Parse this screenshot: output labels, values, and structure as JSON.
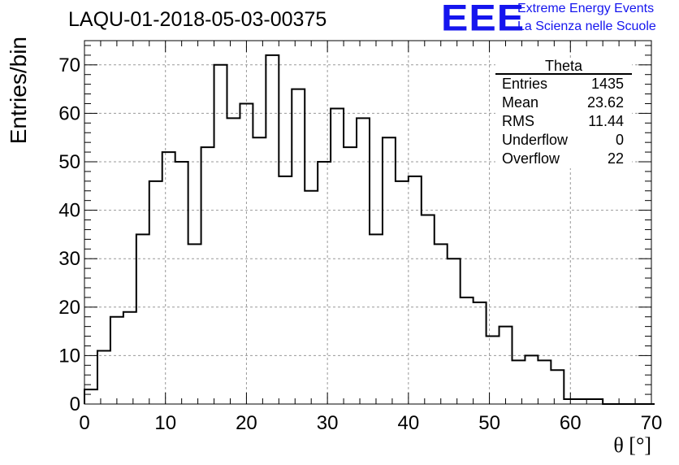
{
  "title": "LAQU-01-2018-05-03-00375",
  "logo": {
    "mark": "EEE",
    "line1": "Extreme Energy Events",
    "line2": "La Scienza nelle Scuole",
    "color": "#1515ee"
  },
  "stats": {
    "title": "Theta",
    "rows": [
      {
        "label": "Entries",
        "value": "1435"
      },
      {
        "label": "Mean",
        "value": "23.62"
      },
      {
        "label": "RMS",
        "value": "11.44"
      },
      {
        "label": "Underflow",
        "value": "0"
      },
      {
        "label": "Overflow",
        "value": "22"
      }
    ]
  },
  "chart_data": {
    "type": "histogram",
    "xlabel": "θ [°]",
    "ylabel": "Entries/bin",
    "xlim": [
      0,
      70
    ],
    "ylim": [
      0,
      75
    ],
    "x_ticks": [
      0,
      10,
      20,
      30,
      40,
      50,
      60,
      70
    ],
    "y_ticks": [
      0,
      10,
      20,
      30,
      40,
      50,
      60,
      70
    ],
    "grid": true,
    "bin_width": 1.6,
    "bin_edges_start": 0,
    "values": [
      3,
      11,
      18,
      19,
      35,
      46,
      52,
      50,
      33,
      53,
      70,
      59,
      62,
      55,
      72,
      47,
      65,
      44,
      50,
      61,
      53,
      59,
      35,
      55,
      46,
      47,
      39,
      33,
      30,
      22,
      21,
      14,
      16,
      9,
      10,
      9,
      7,
      1,
      1,
      1,
      0,
      0,
      0,
      0
    ]
  }
}
